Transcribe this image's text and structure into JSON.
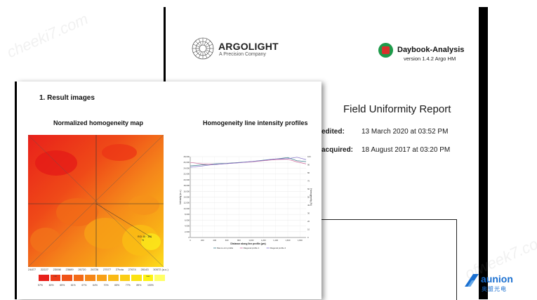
{
  "watermarks": {
    "top_left": "cheeki7.com",
    "bottom_right": "ofweek7.com"
  },
  "back_page": {
    "brand_name": "ARGOLIGHT",
    "brand_subtitle": "A Precision Company",
    "app_name": "Daybook-Analysis",
    "app_version": "version 1.4.2 Argo HM",
    "report_title": "Field Uniformity Report",
    "edited_label": "edited:",
    "edited_value": "13 March 2020 at 03:52 PM",
    "acquired_label": "acquired:",
    "acquired_value": "18 August 2017 at 03:20 PM"
  },
  "front_page": {
    "section_title": "1. Result images",
    "map_title": "Normalized homogeneity map",
    "profiles_title": "Homogeneity line intensity profiles",
    "map_annotation_1": "ROI 45 · 100",
    "map_annotation_2": "%",
    "map_x_ticks": [
      "24877",
      "22227",
      "23098",
      "23689",
      "26720",
      "26726",
      "27077",
      "27tota",
      "27674",
      "28143",
      "30572 (a.u.)"
    ],
    "scale_labels": [
      "57%",
      "60%",
      "65%",
      "61%",
      "67%",
      "64%",
      "70%",
      "65%",
      "77%",
      "89%",
      "100%"
    ],
    "scale_colors": [
      "#e8201a",
      "#ee3b18",
      "#f05318",
      "#f36a17",
      "#f58617",
      "#f8a016",
      "#faba15",
      "#fbce14",
      "#fce312",
      "#fef311",
      "#ffff66"
    ],
    "scale_cell_texts": [
      "",
      "min",
      "",
      "",
      "",
      "",
      "",
      "",
      "",
      "max",
      ""
    ],
    "min_label": "min",
    "max_label": "max",
    "palette": {
      "red": "#e8201a",
      "orange": "#f58617",
      "yellow": "#fce312"
    }
  },
  "chart_data": {
    "type": "line",
    "title": "Homogeneity line intensity profiles",
    "xlabel": "Distance along line profile (µm)",
    "ylabel": "Intensity (a.u.)",
    "y2label": "Homogeneity (%)",
    "xlim": [
      0,
      1900
    ],
    "ylim": [
      0,
      28000
    ],
    "y2lim": [
      0,
      100
    ],
    "x_ticks": [
      "0",
      "200",
      "400",
      "600",
      "800",
      "1,000",
      "1,200",
      "1,400",
      "1,600",
      "1,800"
    ],
    "y_ticks": [
      "0",
      "2,000",
      "4,000",
      "6,000",
      "8,000",
      "10,000",
      "12,000",
      "14,000",
      "16,000",
      "18,000",
      "20,000",
      "22,000",
      "24,000",
      "26,000",
      "28,000"
    ],
    "y2_ticks": [
      "0",
      "10",
      "20",
      "30",
      "40",
      "50",
      "60",
      "70",
      "80",
      "90",
      "100"
    ],
    "legend": [
      "Max-to-min profile",
      "Diagonal profile 1",
      "Diagonal profile 2"
    ],
    "series": [
      {
        "name": "Max-to-min profile",
        "color": "#3a7a8a",
        "x": [
          0,
          200,
          400,
          600,
          800,
          1000,
          1200,
          1400,
          1600,
          1750,
          1900
        ],
        "y": [
          24800,
          25200,
          25500,
          25700,
          26000,
          26300,
          26800,
          27200,
          27700,
          26600,
          26300
        ]
      },
      {
        "name": "Diagonal profile 1",
        "color": "#cc6699",
        "x": [
          0,
          200,
          400,
          600,
          800,
          1000,
          1200,
          1400,
          1600,
          1750,
          1900
        ],
        "y": [
          26000,
          25500,
          25300,
          25600,
          25900,
          26200,
          26600,
          27000,
          27100,
          26200,
          25500
        ]
      },
      {
        "name": "Diagonal profile 2",
        "color": "#7f6cc4",
        "x": [
          0,
          200,
          400,
          600,
          800,
          1000,
          1200,
          1400,
          1600,
          1750,
          1900
        ],
        "y": [
          24300,
          24800,
          25300,
          25600,
          25900,
          26300,
          26700,
          27200,
          27300,
          27800,
          27000
        ]
      }
    ],
    "legend_position": "bottom",
    "grid": true
  }
}
